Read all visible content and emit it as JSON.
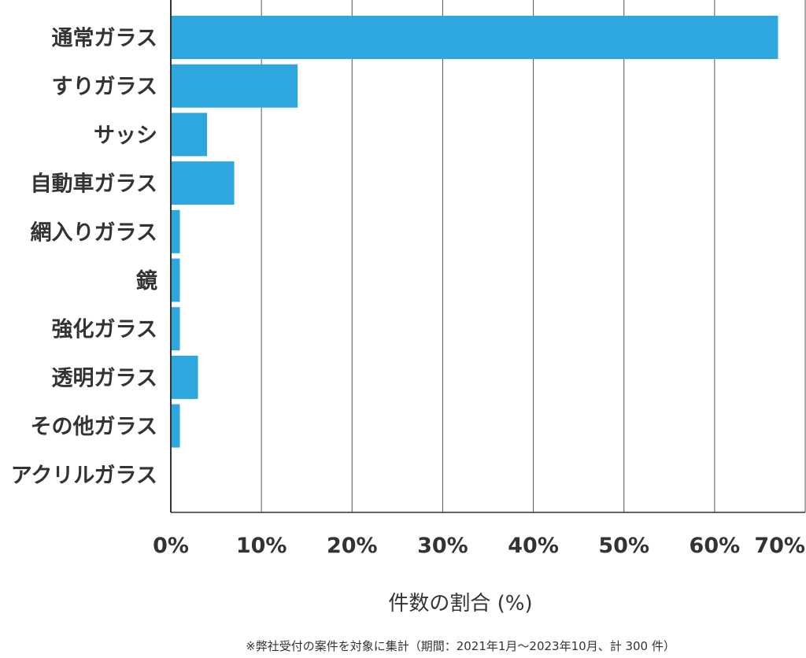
{
  "chart_data": {
    "type": "bar",
    "orientation": "horizontal",
    "categories": [
      "通常ガラス",
      "すりガラス",
      "サッシ",
      "自動車ガラス",
      "網入りガラス",
      "鏡",
      "強化ガラス",
      "透明ガラス",
      "その他ガラス",
      "アクリルガラス"
    ],
    "values": [
      67,
      14,
      4,
      7,
      1,
      1,
      1,
      3,
      1,
      0
    ],
    "xlim": [
      0,
      70
    ],
    "xticks": [
      0,
      10,
      20,
      30,
      40,
      50,
      60,
      70
    ],
    "xtick_labels": [
      "0%",
      "10%",
      "20%",
      "30%",
      "40%",
      "50%",
      "60%",
      "70%"
    ],
    "xlabel": "件数の割合 (%)",
    "ylabel": "",
    "title": "",
    "grid": "vertical",
    "bar_color": "#2ea6de",
    "footnote": "※弊社受付の案件を対象に集計（期間：2021年1月～2023年10月、計 300 件）"
  }
}
